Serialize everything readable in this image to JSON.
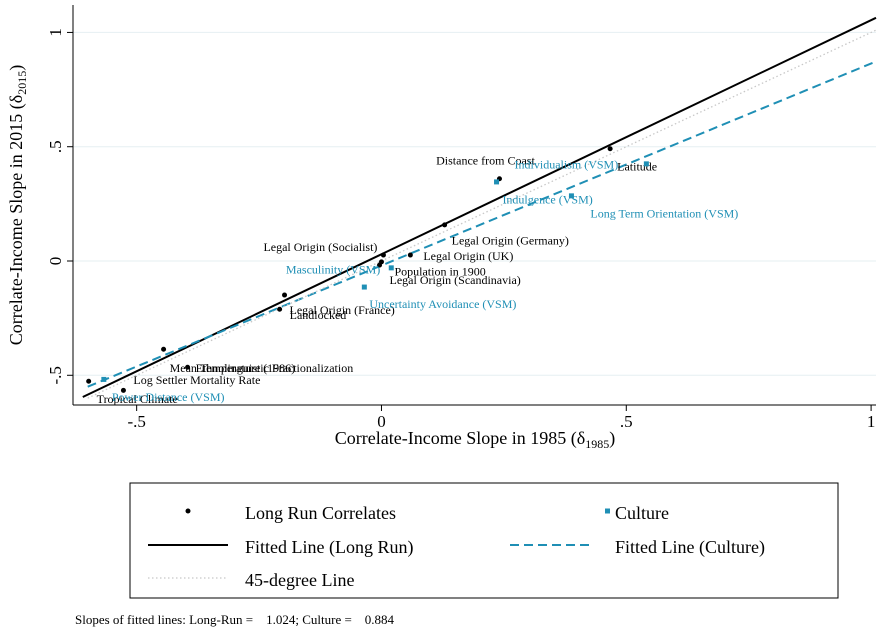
{
  "chart_data": {
    "type": "scatter",
    "xlabel": [
      "Correlate-Income Slope in 1985 (δ",
      "1985",
      ")"
    ],
    "ylabel": [
      "Correlate-Income Slope in 2015 (δ",
      "2015",
      ")"
    ],
    "xlim": [
      -0.63,
      1.01
    ],
    "ylim": [
      -0.63,
      1.12
    ],
    "xticks": [
      {
        "value": -0.5,
        "label": "-.5"
      },
      0,
      {
        "value": 0.5,
        "label": ".5"
      },
      1
    ],
    "yticks": [
      {
        "value": -0.5,
        "label": "-.5"
      },
      0,
      {
        "value": 0.5,
        "label": ".5"
      },
      1
    ],
    "grid": true,
    "series": [
      {
        "name": "Long Run Correlates",
        "type": "scatter",
        "marker": "circle",
        "color": "#000000",
        "x": [
          -0.598,
          -0.527,
          -0.445,
          -0.396,
          -0.198,
          -0.208,
          0.004,
          0.0,
          -0.004,
          0.059,
          0.129,
          0.241,
          0.467
        ],
        "values": [
          -0.526,
          -0.566,
          -0.386,
          -0.465,
          -0.149,
          -0.211,
          0.026,
          -0.004,
          -0.018,
          0.026,
          0.158,
          0.36,
          0.491
        ],
        "labels": [
          "Tropical Climate",
          "Log Settler Mortality Rate",
          "Mean Temperature (1986)",
          "Ethnolinguistic Fractionalization",
          "Legal Origin (France)",
          "Landlocked",
          "Legal Origin (Socialist)",
          "Population in 1900",
          "Legal Origin (Scandinavia)",
          "Legal Origin (UK)",
          "Legal Origin (Germany)",
          "Distance from Coast",
          "Latitude"
        ]
      },
      {
        "name": "Culture",
        "type": "scatter",
        "marker": "square",
        "color": "#1f8fb5",
        "x": [
          -0.567,
          0.02,
          -0.035,
          0.235,
          0.388,
          0.541
        ],
        "values": [
          -0.518,
          -0.03,
          -0.114,
          0.346,
          0.285,
          0.425
        ],
        "labels": [
          "Power Distance (VSM)",
          "Masculinity (VSM)",
          "Uncertainty Avoidance (VSM)",
          "Individualism (VSM)",
          "Indulgence (VSM)",
          "Long Term Orientation (VSM)"
        ]
      },
      {
        "name": "Fitted Line (Long Run)",
        "type": "line",
        "dash": "solid",
        "color": "#000000",
        "x": [
          -0.61,
          1.01
        ],
        "values": [
          -0.595,
          1.064
        ]
      },
      {
        "name": "Fitted Line (Culture)",
        "type": "line",
        "dash": "dashed",
        "color": "#1f8fb5",
        "x": [
          -0.6,
          1.01
        ],
        "values": [
          -0.55,
          0.873
        ]
      },
      {
        "name": "45-degree Line",
        "type": "line",
        "dash": "dotted",
        "color": "#c8c8c8",
        "x": [
          -0.6,
          1.01
        ],
        "values": [
          -0.6,
          1.01
        ]
      }
    ],
    "note": "Slopes of fitted lines: Long-Run =    1.024; Culture =    0.884"
  }
}
